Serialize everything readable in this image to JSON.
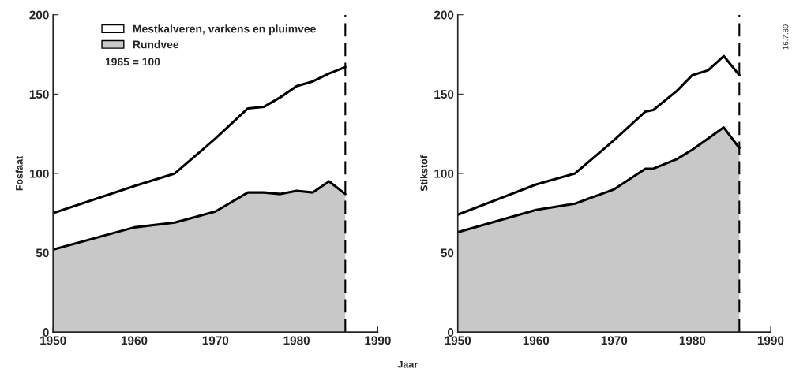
{
  "chart_data": [
    {
      "type": "area",
      "stacked": true,
      "ylabel": "Fosfaat",
      "x": [
        1950,
        1960,
        1965,
        1970,
        1974,
        1976,
        1978,
        1980,
        1982,
        1984,
        1986
      ],
      "series": [
        {
          "name": "Rundvee",
          "color": "#c8c8c8",
          "values": [
            52,
            66,
            69,
            76,
            88,
            88,
            87,
            89,
            88,
            95,
            87
          ]
        },
        {
          "name": "Mestkalveren, varkens en pluimvee",
          "color": "#ffffff",
          "values": [
            23,
            26,
            31,
            46,
            53,
            54,
            61,
            66,
            70,
            68,
            80
          ]
        }
      ],
      "xlim": [
        1950,
        1990
      ],
      "ylim": [
        0,
        200
      ],
      "xticks": [
        1950,
        1960,
        1970,
        1980,
        1990
      ],
      "yticks": [
        0,
        50,
        100,
        150,
        200
      ],
      "ref_lines": [
        {
          "axis": "x",
          "value": 1986,
          "line_style": "dashed",
          "color": "#000000"
        }
      ],
      "legend": "top left",
      "annotations": [
        "1965 = 100"
      ]
    },
    {
      "type": "area",
      "stacked": true,
      "ylabel": "Stikstof",
      "xlabel": "Jaar",
      "x": [
        1950,
        1960,
        1965,
        1970,
        1974,
        1975,
        1978,
        1980,
        1982,
        1984,
        1986
      ],
      "series": [
        {
          "color": "#c8c8c8",
          "values": [
            63,
            77,
            81,
            90,
            103,
            103,
            109,
            115,
            122,
            129,
            116
          ]
        },
        {
          "color": "#ffffff",
          "values": [
            11,
            16,
            19,
            31,
            36,
            37,
            43,
            47,
            43,
            45,
            46
          ]
        }
      ],
      "xlim": [
        1950,
        1990
      ],
      "ylim": [
        0,
        200
      ],
      "xticks": [
        1950,
        1960,
        1970,
        1980,
        1990
      ],
      "yticks": [
        0,
        50,
        100,
        150,
        200
      ],
      "ref_lines": [
        {
          "axis": "x",
          "value": 1986,
          "line_style": "dashed",
          "color": "#000000"
        }
      ],
      "annotations": [
        "16.7.89"
      ]
    }
  ]
}
